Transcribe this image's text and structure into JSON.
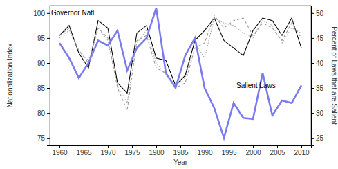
{
  "chart_data": {
    "type": "line",
    "x_label": "Year",
    "y_label": "Nationalization Index",
    "y2_label": "Percent of Laws that are Salient",
    "x": [
      1960,
      1962,
      1964,
      1966,
      1968,
      1970,
      1972,
      1974,
      1976,
      1978,
      1980,
      1982,
      1984,
      1986,
      1988,
      1990,
      1992,
      1994,
      1996,
      1998,
      2000,
      2002,
      2004,
      2006,
      2008,
      2010
    ],
    "series": [
      {
        "name": "Governor Natl.",
        "color": "#000000",
        "line_style": "solid",
        "values": [
          95.5,
          97.5,
          92,
          89,
          98.5,
          97,
          86,
          84,
          96,
          97.5,
          91,
          90.5,
          85.5,
          87.5,
          94.5,
          96.5,
          99,
          94.5,
          93,
          91.5,
          96.5,
          99,
          98.5,
          95.5,
          99,
          93
        ]
      },
      {
        "color": "#999999",
        "line_style": "dashed",
        "values": [
          95.5,
          97,
          92.5,
          90,
          97,
          95,
          85,
          80.5,
          94.5,
          95.5,
          89,
          88,
          85,
          86,
          93,
          94,
          99.5,
          97,
          98.5,
          99,
          95.5,
          98,
          97,
          94.5,
          98,
          95
        ]
      },
      {
        "color": "#aaaaaa",
        "line_style": "dotted",
        "values": [
          95,
          96.5,
          92.5,
          90.5,
          97,
          94.5,
          85.5,
          82,
          94,
          96.5,
          90,
          87.5,
          85.5,
          87,
          94,
          91,
          99,
          98,
          97.5,
          96,
          95,
          98.5,
          97.5,
          94,
          97,
          96
        ]
      },
      {
        "name": "Salient Laws",
        "color": "#7b7bf0",
        "line_style": "solid",
        "axis": "y2",
        "values": [
          44,
          41,
          37,
          40,
          44.5,
          43.5,
          46.5,
          38.5,
          43,
          45,
          51,
          38,
          35,
          41.5,
          45,
          35,
          31,
          25,
          32,
          29,
          28.8,
          38,
          29.5,
          32.5,
          32,
          35.5
        ]
      }
    ],
    "xlim": [
      1958,
      2012
    ],
    "xticks": [
      1960,
      1965,
      1970,
      1975,
      1980,
      1985,
      1990,
      1995,
      2000,
      2005,
      2010
    ],
    "ylim": [
      73.5,
      101.5
    ],
    "yticks": [
      75,
      80,
      85,
      90,
      95,
      100
    ],
    "y2lim": [
      23.5,
      51.5
    ],
    "y2ticks": [
      25,
      30,
      35,
      40,
      45,
      50
    ],
    "grid": false
  }
}
